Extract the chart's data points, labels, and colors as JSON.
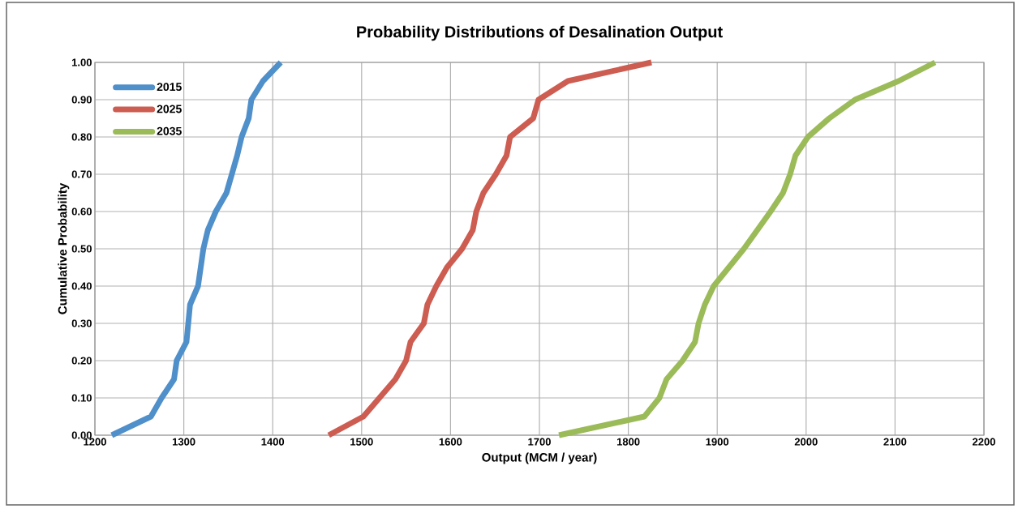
{
  "chart_data": {
    "type": "line",
    "title": "Probability Distributions of Desalination Output",
    "xlabel": "Output (MCM / year)",
    "ylabel": "Cumulative Probability",
    "xlim": [
      1200,
      2200
    ],
    "xticks": [
      1200,
      1300,
      1400,
      1500,
      1600,
      1700,
      1800,
      1900,
      2000,
      2100,
      2200
    ],
    "ylim": [
      0,
      1
    ],
    "yticks": [
      {
        "value": 0,
        "label": "0.00"
      },
      {
        "value": 0.1,
        "label": "0.10"
      },
      {
        "value": 0.2,
        "label": "0.20"
      },
      {
        "value": 0.3,
        "label": "0.30"
      },
      {
        "value": 0.4,
        "label": "0.40"
      },
      {
        "value": 0.5,
        "label": "0.50"
      },
      {
        "value": 0.6,
        "label": "0.60"
      },
      {
        "value": 0.7,
        "label": "0.70"
      },
      {
        "value": 0.8,
        "label": "0.80"
      },
      {
        "value": 0.9,
        "label": "0.90"
      },
      {
        "value": 1,
        "label": "1.00"
      }
    ],
    "grid": true,
    "legend": "top left",
    "marker": "none",
    "line_style": "solid",
    "series": [
      {
        "name": "2015",
        "color": "#4f8fca",
        "x": [
          1219,
          1263,
          1275,
          1289,
          1292,
          1303,
          1305,
          1307,
          1316,
          1319,
          1322,
          1327,
          1336,
          1348,
          1354,
          1360,
          1365,
          1373,
          1376,
          1389,
          1409
        ],
        "values": [
          0,
          0.05,
          0.1,
          0.15,
          0.2,
          0.25,
          0.3,
          0.35,
          0.4,
          0.45,
          0.5,
          0.55,
          0.6,
          0.65,
          0.7,
          0.75,
          0.8,
          0.85,
          0.9,
          0.95,
          1
        ]
      },
      {
        "name": "2025",
        "color": "#cd5c51",
        "x": [
          1463,
          1502,
          1520,
          1538,
          1550,
          1555,
          1570,
          1574,
          1584,
          1596,
          1613,
          1625,
          1629,
          1637,
          1651,
          1663,
          1667,
          1693,
          1699,
          1732,
          1826
        ],
        "values": [
          0,
          0.05,
          0.1,
          0.15,
          0.2,
          0.25,
          0.3,
          0.35,
          0.4,
          0.45,
          0.5,
          0.55,
          0.6,
          0.65,
          0.7,
          0.75,
          0.8,
          0.85,
          0.9,
          0.95,
          1
        ]
      },
      {
        "name": "2035",
        "color": "#9bbb59",
        "x": [
          1722,
          1818,
          1835,
          1843,
          1861,
          1875,
          1879,
          1886,
          1896,
          1913,
          1930,
          1945,
          1960,
          1974,
          1982,
          1988,
          2002,
          2026,
          2055,
          2104,
          2145
        ],
        "values": [
          0,
          0.05,
          0.1,
          0.15,
          0.2,
          0.25,
          0.3,
          0.35,
          0.4,
          0.45,
          0.5,
          0.55,
          0.6,
          0.65,
          0.7,
          0.75,
          0.8,
          0.85,
          0.9,
          0.95,
          1
        ]
      }
    ]
  }
}
